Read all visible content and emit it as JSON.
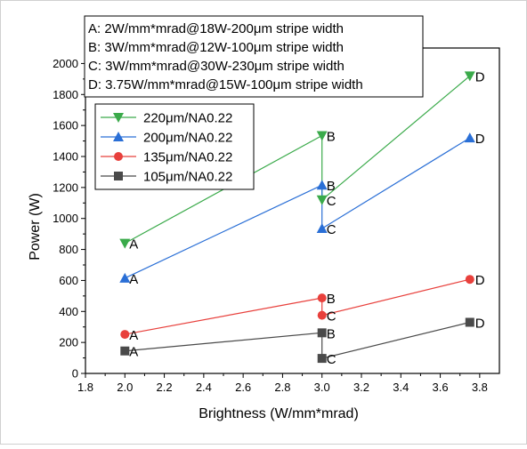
{
  "chart_data": {
    "type": "line",
    "title": "",
    "xlabel": "Brightness (W/mm*mrad)",
    "ylabel": "Power (W)",
    "xlim": [
      1.8,
      3.9
    ],
    "ylim": [
      0,
      2100
    ],
    "xticks": [
      1.8,
      2.0,
      2.2,
      2.4,
      2.6,
      2.8,
      3.0,
      3.2,
      3.4,
      3.6,
      3.8
    ],
    "xtick_labels": [
      "1.8",
      "2.0",
      "2.2",
      "2.4",
      "2.6",
      "2.8",
      "3.0",
      "3.2",
      "3.4",
      "3.6",
      "3.8"
    ],
    "yticks": [
      0,
      200,
      400,
      600,
      800,
      1000,
      1200,
      1400,
      1600,
      1800,
      2000
    ],
    "ytick_labels": [
      "0",
      "200",
      "400",
      "600",
      "800",
      "1000",
      "1200",
      "1400",
      "1600",
      "1800",
      "2000"
    ],
    "grid": false,
    "legend_position": "upper-left",
    "series": [
      {
        "name": "220μm/NA0.22",
        "color": "#3aaa4a",
        "marker": "triangle-down",
        "points": [
          {
            "x": 2.0,
            "y": 840,
            "label": "A"
          },
          {
            "x": 3.0,
            "y": 1535,
            "label": "B"
          },
          {
            "x": 3.0,
            "y": 1120,
            "label": "C"
          },
          {
            "x": 3.75,
            "y": 1920,
            "label": "D"
          }
        ]
      },
      {
        "name": "200μm/NA0.22",
        "color": "#2a6fd6",
        "marker": "triangle-up",
        "points": [
          {
            "x": 2.0,
            "y": 615,
            "label": "A"
          },
          {
            "x": 3.0,
            "y": 1215,
            "label": "B"
          },
          {
            "x": 3.0,
            "y": 935,
            "label": "C"
          },
          {
            "x": 3.75,
            "y": 1520,
            "label": "D"
          }
        ]
      },
      {
        "name": "135μm/NA0.22",
        "color": "#e8403c",
        "marker": "circle",
        "points": [
          {
            "x": 2.0,
            "y": 252,
            "label": "A"
          },
          {
            "x": 3.0,
            "y": 487,
            "label": "B"
          },
          {
            "x": 3.0,
            "y": 375,
            "label": "C"
          },
          {
            "x": 3.75,
            "y": 607,
            "label": "D"
          }
        ]
      },
      {
        "name": "105μm/NA0.22",
        "color": "#4a4a4a",
        "marker": "square",
        "points": [
          {
            "x": 2.0,
            "y": 145,
            "label": "A"
          },
          {
            "x": 3.0,
            "y": 262,
            "label": "B"
          },
          {
            "x": 3.0,
            "y": 97,
            "label": "C"
          },
          {
            "x": 3.75,
            "y": 330,
            "label": "D"
          }
        ]
      }
    ],
    "annotations": [
      "A: 2W/mm*mrad@18W-200μm stripe width",
      "B: 3W/mm*mrad@12W-100μm stripe width",
      "C: 3W/mm*mrad@30W-230μm stripe width",
      "D: 3.75W/mm*mrad@15W-100μm stripe width"
    ]
  }
}
